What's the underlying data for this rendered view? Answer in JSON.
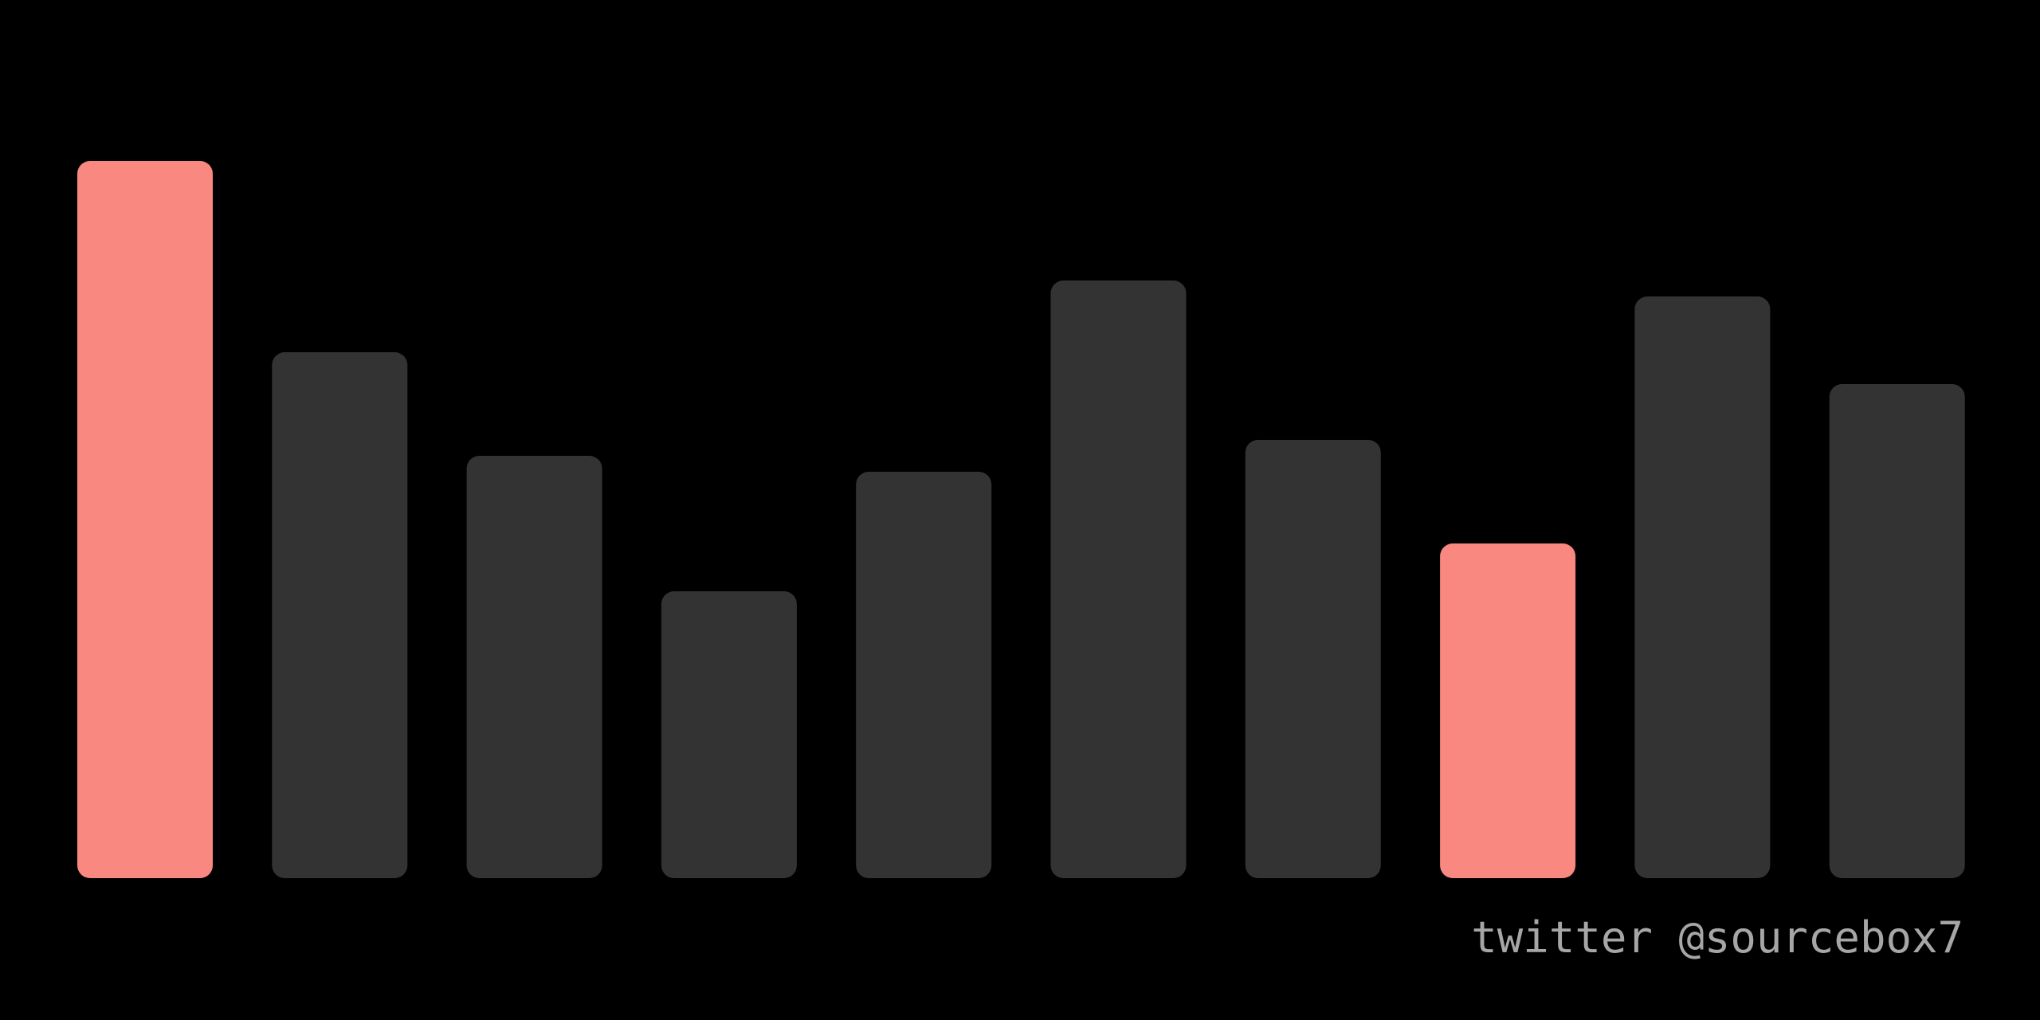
{
  "chart_data": {
    "type": "bar",
    "values": [
      90,
      66,
      53,
      36,
      51,
      75,
      55,
      42,
      73,
      62
    ],
    "highlighted": [
      0,
      7
    ],
    "ylim": [
      0,
      100
    ],
    "grid": false,
    "legend": "none"
  },
  "colors": {
    "background": "#000000",
    "bar": "#333333",
    "highlight": "#f88880",
    "credit_text": "#a6a6a6"
  },
  "credit": "twitter @sourcebox7"
}
